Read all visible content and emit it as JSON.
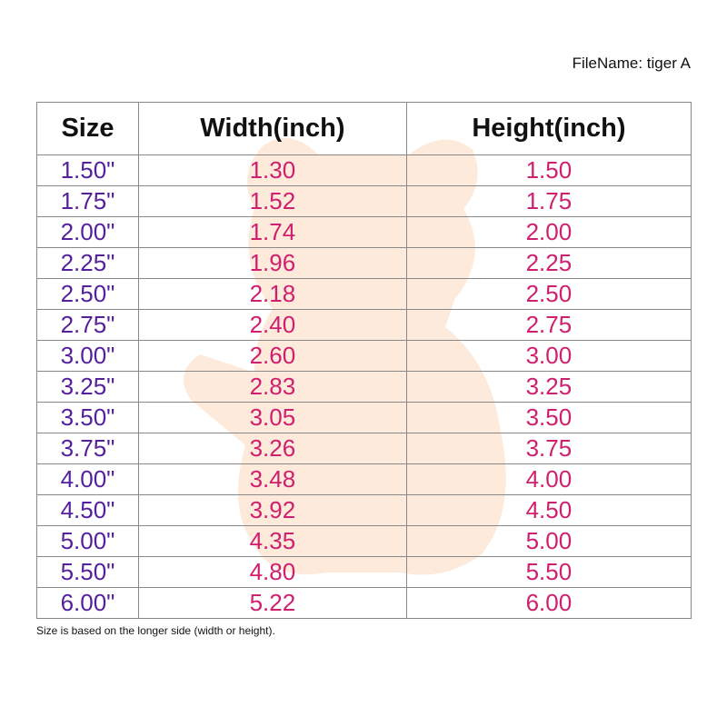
{
  "file_name": "FileName: tiger A",
  "colors": {
    "size": "#55209e",
    "value": "#cf1f6e",
    "watermark": "#f7a35c"
  },
  "watermark_icon": "tiger-silhouette",
  "headers": [
    "Size",
    "Width(inch)",
    "Height(inch)"
  ],
  "rows": [
    [
      "1.50\"",
      "1.30",
      "1.50"
    ],
    [
      "1.75\"",
      "1.52",
      "1.75"
    ],
    [
      "2.00\"",
      "1.74",
      "2.00"
    ],
    [
      "2.25\"",
      "1.96",
      "2.25"
    ],
    [
      "2.50\"",
      "2.18",
      "2.50"
    ],
    [
      "2.75\"",
      "2.40",
      "2.75"
    ],
    [
      "3.00\"",
      "2.60",
      "3.00"
    ],
    [
      "3.25\"",
      "2.83",
      "3.25"
    ],
    [
      "3.50\"",
      "3.05",
      "3.50"
    ],
    [
      "3.75\"",
      "3.26",
      "3.75"
    ],
    [
      "4.00\"",
      "3.48",
      "4.00"
    ],
    [
      "4.50\"",
      "3.92",
      "4.50"
    ],
    [
      "5.00\"",
      "4.35",
      "5.00"
    ],
    [
      "5.50\"",
      "4.80",
      "5.50"
    ],
    [
      "6.00\"",
      "5.22",
      "6.00"
    ]
  ],
  "note": "Size is based on the longer side (width or height)."
}
